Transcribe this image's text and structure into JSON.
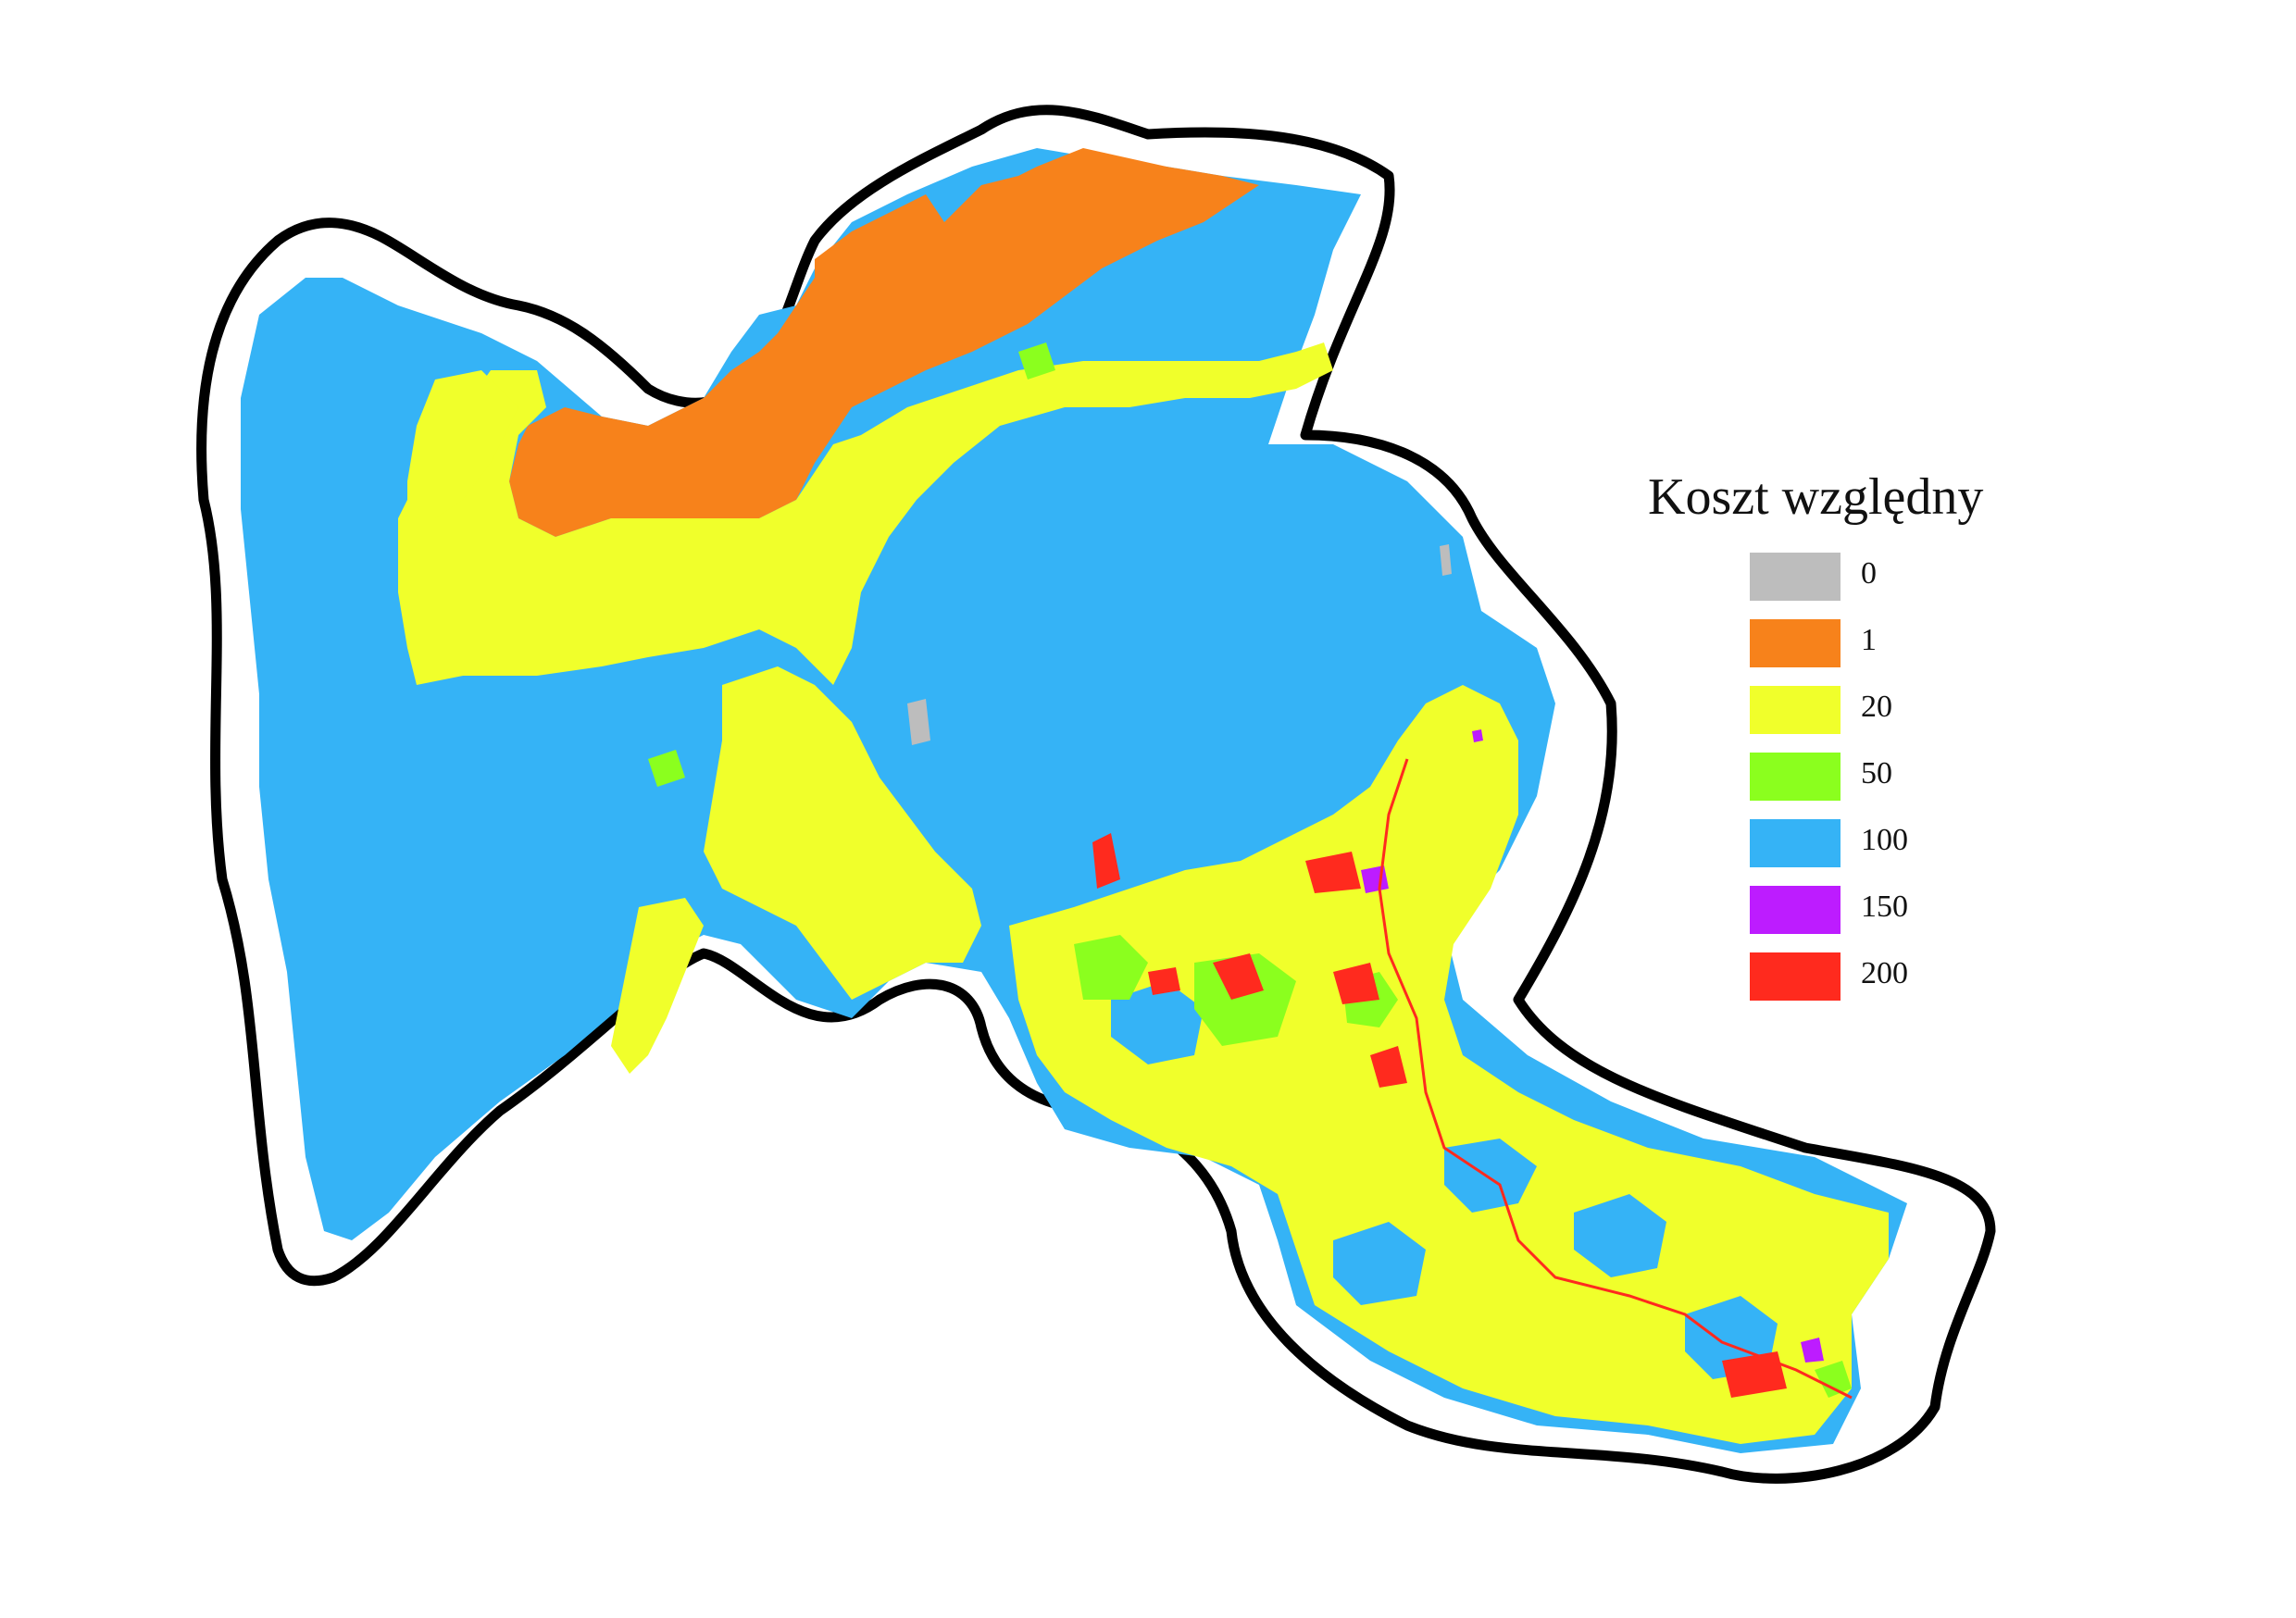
{
  "legend": {
    "title": "Koszt względny",
    "items": [
      {
        "label": "0",
        "color": "#bdbdbd"
      },
      {
        "label": "1",
        "color": "#f7821b"
      },
      {
        "label": "20",
        "color": "#f0ff2b"
      },
      {
        "label": "50",
        "color": "#8bff1e"
      },
      {
        "label": "100",
        "color": "#35b3f6"
      },
      {
        "label": "150",
        "color": "#bd1cff"
      },
      {
        "label": "200",
        "color": "#ff2a1e"
      }
    ]
  },
  "colors": {
    "boundary": "#000000",
    "background": "#ffffff"
  }
}
